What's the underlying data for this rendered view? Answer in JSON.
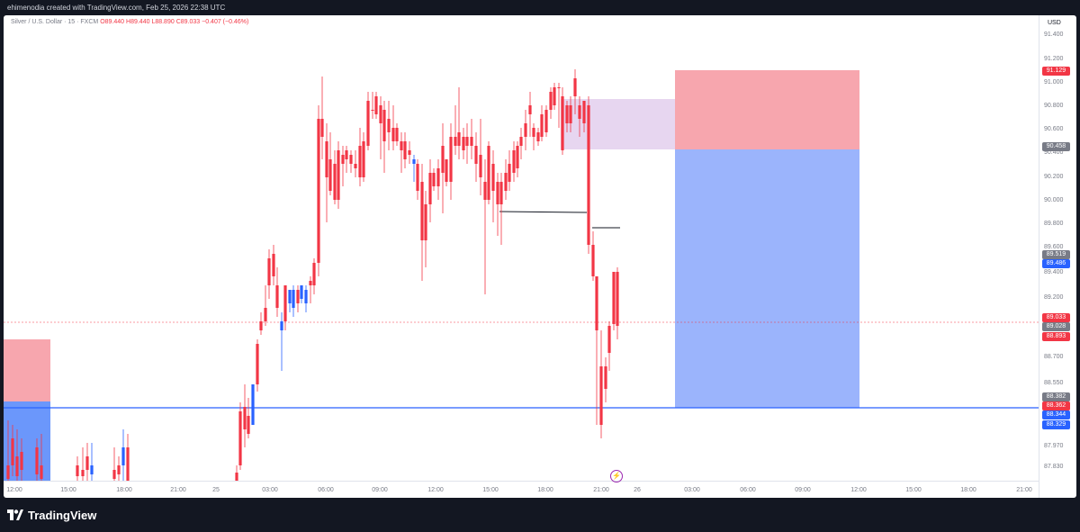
{
  "header": {
    "credit": "ehimenodia created with TradingView.com, Feb 25, 2026 22:38 UTC"
  },
  "legend": {
    "symbol": "Silver / U.S. Dollar · 15 · FXCM",
    "open": "O89.440",
    "high": "H89.440",
    "low": "L88.890",
    "close": "C89.033",
    "change": "−0.407 (−0.46%)"
  },
  "currency": "USD",
  "price_axis": {
    "ticks": [
      "91.400",
      "91.200",
      "91.000",
      "90.800",
      "90.600",
      "90.400",
      "90.200",
      "90.000",
      "89.800",
      "89.600",
      "89.400",
      "89.200",
      "88.700",
      "88.550",
      "87.970",
      "87.830"
    ],
    "badges": [
      {
        "label": "91.129",
        "color": "#f23645"
      },
      {
        "label": "90.458",
        "color": "#787b86"
      },
      {
        "label": "89.519",
        "color": "#787b86"
      },
      {
        "label": "89.486",
        "color": "#2962ff"
      },
      {
        "label": "89.033",
        "color": "#f23645"
      },
      {
        "label": "89.028",
        "color": "#787b86"
      },
      {
        "label": "88.893",
        "color": "#f23645"
      },
      {
        "label": "88.382",
        "color": "#787b86"
      },
      {
        "label": "88.362",
        "color": "#f23645"
      },
      {
        "label": "88.344",
        "color": "#2962ff"
      },
      {
        "label": "88.329",
        "color": "#2962ff"
      }
    ]
  },
  "time_axis": [
    "12:00",
    "15:00",
    "18:00",
    "21:00",
    "25",
    "03:00",
    "06:00",
    "09:00",
    "12:00",
    "15:00",
    "18:00",
    "21:00",
    "26",
    "03:00",
    "06:00",
    "09:00",
    "12:00",
    "15:00",
    "18:00",
    "21:00"
  ],
  "colors": {
    "up": "#2962ff",
    "down": "#f23645",
    "profit_zone": "#9bb4fc",
    "loss_zone": "#f7a6ae",
    "supply_zone": "#e7d6f0"
  },
  "footer": {
    "brand": "TradingView"
  },
  "icons": {
    "event_marker": "lightning-icon",
    "logo": "tradingview-logo-icon"
  }
}
